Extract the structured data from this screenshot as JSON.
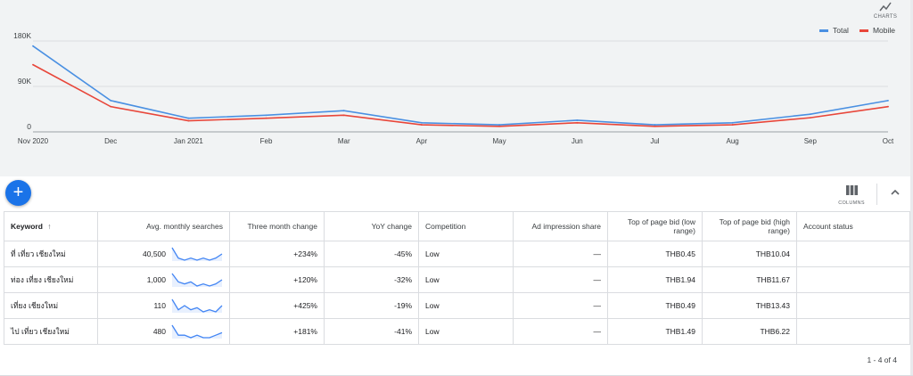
{
  "chart_toolbar": {
    "charts_label": "CHARTS"
  },
  "colors": {
    "total": "#4a90e2",
    "mobile": "#e8463a",
    "accent": "#1a73e8"
  },
  "chart_data": {
    "type": "line",
    "categories": [
      "Nov 2020",
      "Dec",
      "Jan 2021",
      "Feb",
      "Mar",
      "Apr",
      "May",
      "Jun",
      "Jul",
      "Aug",
      "Sep",
      "Oct"
    ],
    "series": [
      {
        "name": "Total",
        "values": [
          170000,
          62000,
          27000,
          33000,
          42000,
          18000,
          14000,
          23000,
          14000,
          18000,
          35000,
          62000
        ]
      },
      {
        "name": "Mobile",
        "values": [
          133000,
          50000,
          22000,
          27000,
          33000,
          14000,
          11000,
          18000,
          11000,
          14000,
          28000,
          50000
        ]
      }
    ],
    "yticks": [
      {
        "value": 0,
        "label": "0"
      },
      {
        "value": 90000,
        "label": "90K"
      },
      {
        "value": 180000,
        "label": "180K"
      }
    ],
    "ylim": [
      0,
      180000
    ],
    "grid": true,
    "legend": "top-right"
  },
  "toolbar": {
    "add_label": "+",
    "columns_label": "COLUMNS"
  },
  "table": {
    "headers": {
      "keyword": "Keyword",
      "sort_arrow": "↑",
      "searches": "Avg. monthly searches",
      "three_month": "Three month change",
      "yoy": "YoY change",
      "competition": "Competition",
      "ad_share": "Ad impression share",
      "bid_low": "Top of page bid (low range)",
      "bid_high": "Top of page bid (high range)",
      "account_status": "Account status"
    },
    "rows": [
      {
        "keyword": "ที่ เที่ยว เชียงใหม่",
        "searches": "40,500",
        "three_month": "+234%",
        "yoy": "-45%",
        "competition": "Low",
        "ad_share": "—",
        "bid_low": "THB0.45",
        "bid_high": "THB10.04",
        "account_status": "",
        "trend": [
          9,
          4,
          3,
          4,
          3,
          4,
          3,
          4,
          6
        ]
      },
      {
        "keyword": "ท่อง เที่ยง เชียงใหม่",
        "searches": "1,000",
        "three_month": "+120%",
        "yoy": "-32%",
        "competition": "Low",
        "ad_share": "—",
        "bid_low": "THB1.94",
        "bid_high": "THB11.67",
        "account_status": "",
        "trend": [
          9,
          5,
          4,
          5,
          3,
          4,
          3,
          4,
          6
        ]
      },
      {
        "keyword": "เที่ยง เชียงใหม่",
        "searches": "110",
        "three_month": "+425%",
        "yoy": "-19%",
        "competition": "Low",
        "ad_share": "—",
        "bid_low": "THB0.49",
        "bid_high": "THB13.43",
        "account_status": "",
        "trend": [
          9,
          4,
          6,
          4,
          5,
          3,
          4,
          3,
          6
        ]
      },
      {
        "keyword": "ไป เที่ยว เชียงใหม่",
        "searches": "480",
        "three_month": "+181%",
        "yoy": "-41%",
        "competition": "Low",
        "ad_share": "—",
        "bid_low": "THB1.49",
        "bid_high": "THB6.22",
        "account_status": "",
        "trend": [
          8,
          4,
          4,
          3,
          4,
          3,
          3,
          4,
          5
        ]
      }
    ]
  },
  "pagination": {
    "text": "1 - 4 of 4"
  }
}
